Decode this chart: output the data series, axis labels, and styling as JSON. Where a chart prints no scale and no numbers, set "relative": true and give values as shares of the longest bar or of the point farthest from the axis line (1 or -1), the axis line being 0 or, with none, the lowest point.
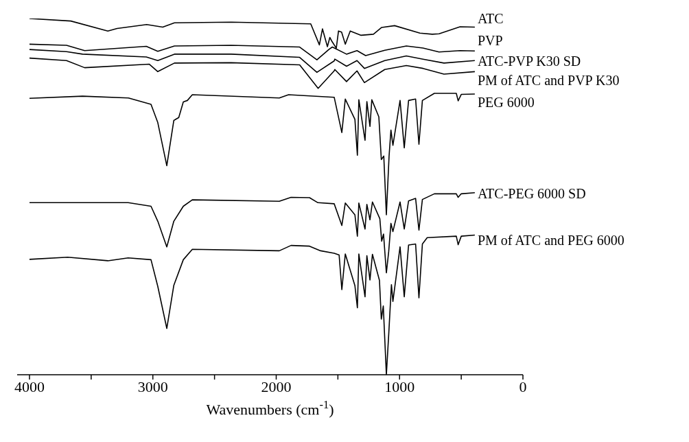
{
  "chart_data": {
    "type": "line",
    "relative": true,
    "xlabel": "Wavenumbers (cm$^{-1}$)",
    "xlim": [
      4100,
      0
    ],
    "xticks": [
      4000,
      {
        "value": 3500,
        "label": null
      },
      3000,
      {
        "value": 2500,
        "label": null
      },
      2000,
      {
        "value": 1500,
        "label": null
      },
      1000,
      {
        "value": 500,
        "label": null
      },
      0
    ],
    "series": [
      {
        "name": "ATC",
        "color": "#000000",
        "x": [
          4000,
          3665,
          3365,
          3290,
          3050,
          2920,
          2825,
          2365,
          1720,
          1650,
          1625,
          1585,
          1565,
          1550,
          1513,
          1495,
          1470,
          1440,
          1400,
          1312,
          1212,
          1145,
          1040,
          835,
          735,
          680,
          510,
          390
        ],
        "values": [
          1.0,
          0.993,
          0.965,
          0.972,
          0.983,
          0.976,
          0.988,
          0.99,
          0.985,
          0.926,
          0.971,
          0.921,
          0.947,
          0.937,
          0.917,
          0.965,
          0.962,
          0.928,
          0.965,
          0.953,
          0.956,
          0.975,
          0.98,
          0.959,
          0.956,
          0.957,
          0.977,
          0.976
        ]
      },
      {
        "name": "PVP",
        "color": "#000000",
        "x": [
          4000,
          3700,
          3553,
          3053,
          2960,
          2825,
          2365,
          1810,
          1670,
          1570,
          1545,
          1430,
          1345,
          1275,
          1120,
          945,
          810,
          680,
          510,
          390
        ],
        "values": [
          0.928,
          0.925,
          0.91,
          0.922,
          0.908,
          0.923,
          0.925,
          0.92,
          0.884,
          0.914,
          0.92,
          0.9,
          0.91,
          0.896,
          0.911,
          0.923,
          0.917,
          0.906,
          0.91,
          0.909
        ]
      },
      {
        "name": "ATC-PVP K30 SD",
        "color": "#000000",
        "x": [
          4000,
          3700,
          3570,
          3053,
          2960,
          2825,
          2365,
          1810,
          1670,
          1530,
          1525,
          1430,
          1345,
          1285,
          1120,
          945,
          810,
          640,
          390
        ],
        "values": [
          0.913,
          0.907,
          0.9,
          0.892,
          0.882,
          0.9,
          0.9,
          0.891,
          0.849,
          0.881,
          0.886,
          0.866,
          0.882,
          0.86,
          0.882,
          0.895,
          0.886,
          0.875,
          0.882
        ]
      },
      {
        "name": "PM of ATC and PVP K30",
        "color": "#000000",
        "x": [
          4000,
          3700,
          3553,
          3030,
          2960,
          2825,
          2365,
          1810,
          1660,
          1530,
          1525,
          1430,
          1345,
          1285,
          1120,
          945,
          810,
          640,
          390
        ],
        "values": [
          0.889,
          0.882,
          0.862,
          0.872,
          0.851,
          0.875,
          0.876,
          0.87,
          0.804,
          0.853,
          0.857,
          0.823,
          0.853,
          0.82,
          0.857,
          0.868,
          0.86,
          0.844,
          0.851
        ]
      },
      {
        "name": "PEG 6000",
        "color": "#000000",
        "x": [
          4000,
          3570,
          3198,
          3015,
          2960,
          2887,
          2830,
          2790,
          2753,
          2720,
          2680,
          1975,
          1900,
          1530,
          1468,
          1440,
          1362,
          1342,
          1330,
          1280,
          1265,
          1240,
          1225,
          1168,
          1148,
          1128,
          1107,
          1085,
          1070,
          1054,
          996,
          962,
          927,
          870,
          843,
          815,
          718,
          540,
          525,
          500,
          390
        ],
        "values": [
          0.776,
          0.782,
          0.777,
          0.759,
          0.708,
          0.587,
          0.714,
          0.722,
          0.766,
          0.77,
          0.786,
          0.777,
          0.786,
          0.779,
          0.68,
          0.774,
          0.717,
          0.616,
          0.772,
          0.658,
          0.767,
          0.697,
          0.772,
          0.724,
          0.604,
          0.614,
          0.449,
          0.614,
          0.687,
          0.644,
          0.77,
          0.637,
          0.77,
          0.774,
          0.647,
          0.77,
          0.79,
          0.79,
          0.769,
          0.787,
          0.788
        ]
      },
      {
        "name": "ATC-PEG 6000 SD",
        "color": "#000000",
        "x": [
          4000,
          3200,
          3015,
          2960,
          2887,
          2830,
          2753,
          2680,
          1975,
          1880,
          1730,
          1662,
          1530,
          1468,
          1440,
          1362,
          1342,
          1330,
          1280,
          1265,
          1240,
          1220,
          1160,
          1145,
          1130,
          1107,
          1088,
          1070,
          1054,
          996,
          962,
          927,
          870,
          843,
          815,
          718,
          540,
          525,
          500,
          390
        ],
        "values": [
          0.483,
          0.483,
          0.473,
          0.431,
          0.359,
          0.431,
          0.473,
          0.491,
          0.487,
          0.498,
          0.497,
          0.483,
          0.48,
          0.419,
          0.482,
          0.449,
          0.389,
          0.482,
          0.409,
          0.478,
          0.435,
          0.485,
          0.438,
          0.375,
          0.395,
          0.286,
          0.346,
          0.425,
          0.402,
          0.485,
          0.409,
          0.488,
          0.495,
          0.406,
          0.492,
          0.508,
          0.508,
          0.498,
          0.508,
          0.511
        ]
      },
      {
        "name": "PM of ATC and PEG 6000",
        "color": "#000000",
        "x": [
          4000,
          3690,
          3365,
          3200,
          3015,
          2960,
          2887,
          2830,
          2753,
          2680,
          1975,
          1880,
          1730,
          1640,
          1530,
          1490,
          1468,
          1440,
          1362,
          1342,
          1330,
          1280,
          1265,
          1240,
          1220,
          1163,
          1148,
          1132,
          1107,
          1088,
          1066,
          1054,
          996,
          962,
          927,
          870,
          843,
          815,
          776,
          540,
          525,
          500,
          390
        ],
        "values": [
          0.324,
          0.33,
          0.32,
          0.328,
          0.323,
          0.248,
          0.13,
          0.251,
          0.323,
          0.352,
          0.348,
          0.363,
          0.361,
          0.348,
          0.341,
          0.336,
          0.239,
          0.339,
          0.25,
          0.188,
          0.339,
          0.219,
          0.334,
          0.266,
          0.338,
          0.265,
          0.156,
          0.193,
          0,
          0.113,
          0.253,
          0.206,
          0.359,
          0.219,
          0.364,
          0.367,
          0.216,
          0.367,
          0.385,
          0.389,
          0.365,
          0.389,
          0.392
        ]
      }
    ]
  }
}
